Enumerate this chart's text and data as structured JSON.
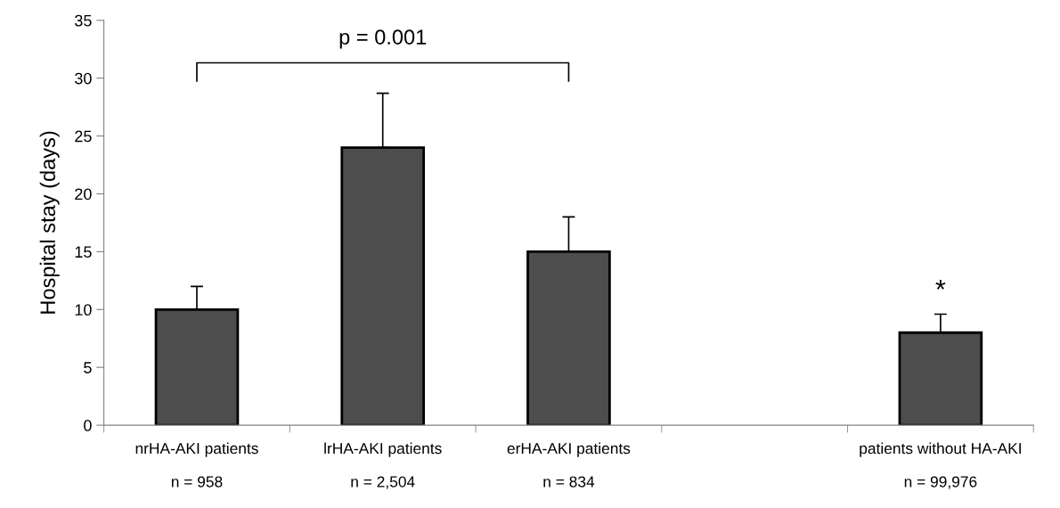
{
  "chart_data": {
    "type": "bar",
    "ylabel": "Hospital stay (days)",
    "categories": [
      "nrHA-AKI patients\n\nn = 958",
      "lrHA-AKI patients\n\nn = 2,504",
      "erHA-AKI patients\n\nn = 834",
      null,
      "patients without HA-AKI\n\nn = 99,976"
    ],
    "values": [
      10,
      24,
      15,
      null,
      8
    ],
    "errors": [
      [
        10,
        12
      ],
      [
        24,
        28.7
      ],
      [
        15,
        18
      ],
      null,
      [
        8,
        9.6
      ]
    ],
    "color": "#4d4d4d",
    "ylim": [
      0,
      35
    ],
    "yticks": [
      0,
      5,
      10,
      15,
      20,
      25,
      30,
      35
    ],
    "annotations": [
      "p = 0.001",
      "*"
    ]
  }
}
